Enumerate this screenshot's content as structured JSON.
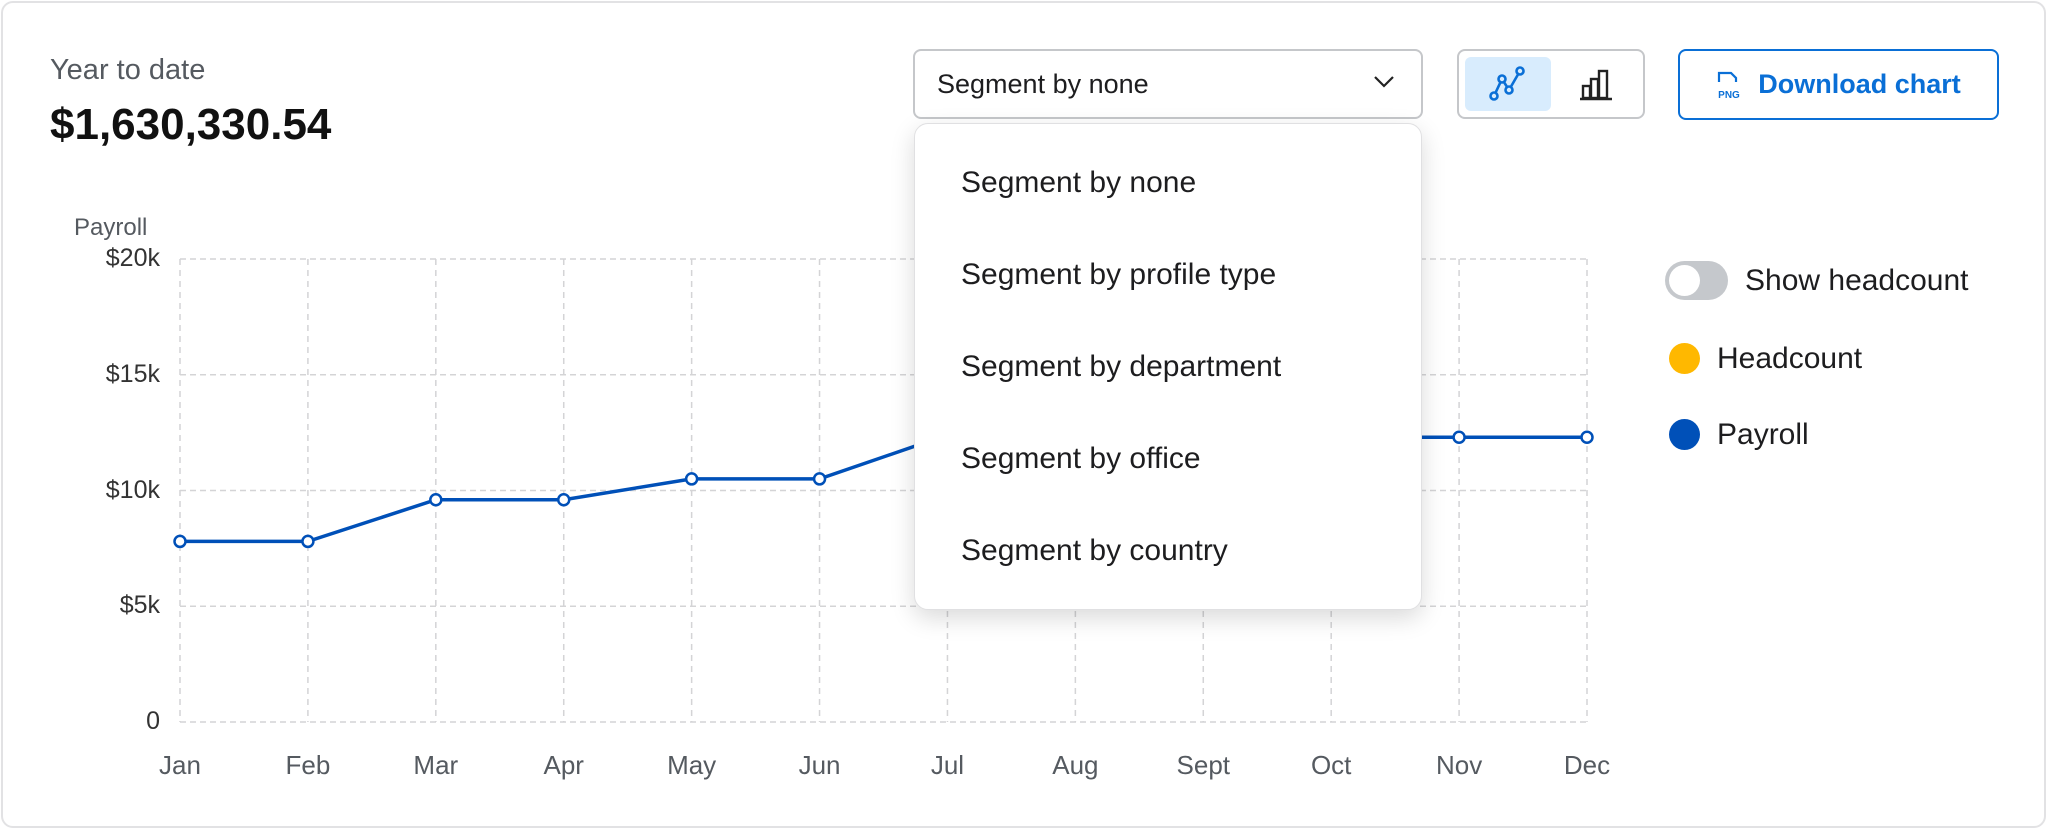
{
  "summary": {
    "label": "Year to date",
    "value": "$1,630,330.54"
  },
  "segment": {
    "selected": "Segment by none",
    "options": [
      "Segment by none",
      "Segment by profile type",
      "Segment by department",
      "Segment by office",
      "Segment by country"
    ]
  },
  "view_toggle": {
    "active": "line-chart-icon",
    "options": [
      "line-chart-icon",
      "bar-chart-icon"
    ]
  },
  "download": {
    "label": "Download chart",
    "icon_text": "PNG"
  },
  "legend": {
    "toggle_label": "Show headcount",
    "toggle_on": false,
    "items": [
      {
        "label": "Headcount",
        "color": "#ffb800"
      },
      {
        "label": "Payroll",
        "color": "#0050b8"
      }
    ]
  },
  "chart_data": {
    "type": "line",
    "ylabel": "Payroll",
    "categories": [
      "Jan",
      "Feb",
      "Mar",
      "Apr",
      "May",
      "Jun",
      "Jul",
      "Aug",
      "Sept",
      "Oct",
      "Nov",
      "Dec"
    ],
    "series": [
      {
        "name": "Payroll",
        "color": "#0050b8",
        "values": [
          7800,
          7800,
          9600,
          9600,
          10500,
          10500,
          12400,
          12300,
          12300,
          12300,
          12300,
          12300
        ]
      }
    ],
    "ylim": [
      0,
      20000
    ],
    "yticks": [
      {
        "v": 20000,
        "label": "$20k"
      },
      {
        "v": 15000,
        "label": "$15k"
      },
      {
        "v": 10000,
        "label": "$10k"
      },
      {
        "v": 5000,
        "label": "$5k"
      },
      {
        "v": 0,
        "label": "0"
      }
    ],
    "grid": true,
    "legend": "right"
  }
}
